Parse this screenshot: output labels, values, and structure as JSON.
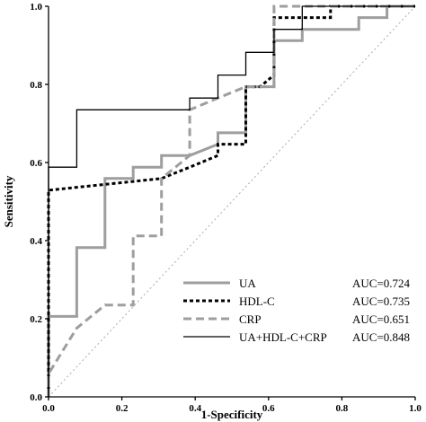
{
  "chart_data": {
    "type": "line",
    "title": "",
    "xlabel": "1-Specificity",
    "ylabel": "Sensitivity",
    "xlim": [
      0,
      1
    ],
    "ylim": [
      0,
      1
    ],
    "xticks": [
      "0.0",
      "0.2",
      "0.4",
      "0.6",
      "0.8",
      "1.0"
    ],
    "yticks": [
      "0.0",
      "0.2",
      "0.4",
      "0.6",
      "0.8",
      "1.0"
    ],
    "grid": false,
    "legend_position": "bottom-right",
    "reference_line": true,
    "series": [
      {
        "name": "UA",
        "auc": "AUC=0.724",
        "color": "#9e9e9e",
        "style": "solid-thick",
        "points": [
          [
            0,
            0
          ],
          [
            0,
            0.206
          ],
          [
            0.077,
            0.206
          ],
          [
            0.077,
            0.382
          ],
          [
            0.154,
            0.382
          ],
          [
            0.154,
            0.559
          ],
          [
            0.231,
            0.559
          ],
          [
            0.231,
            0.588
          ],
          [
            0.308,
            0.588
          ],
          [
            0.308,
            0.618
          ],
          [
            0.385,
            0.618
          ],
          [
            0.462,
            0.647
          ],
          [
            0.462,
            0.676
          ],
          [
            0.538,
            0.676
          ],
          [
            0.538,
            0.794
          ],
          [
            0.615,
            0.794
          ],
          [
            0.615,
            0.882
          ],
          [
            0.615,
            0.912
          ],
          [
            0.692,
            0.912
          ],
          [
            0.692,
            0.941
          ],
          [
            0.846,
            0.941
          ],
          [
            0.846,
            0.971
          ],
          [
            0.923,
            0.971
          ],
          [
            0.923,
            1.0
          ],
          [
            1.0,
            1.0
          ]
        ]
      },
      {
        "name": "HDL-C",
        "auc": "AUC=0.735",
        "color": "#000000",
        "style": "dotted-thick",
        "points": [
          [
            0,
            0
          ],
          [
            0,
            0.529
          ],
          [
            0.308,
            0.559
          ],
          [
            0.385,
            0.588
          ],
          [
            0.462,
            0.618
          ],
          [
            0.462,
            0.647
          ],
          [
            0.538,
            0.647
          ],
          [
            0.538,
            0.794
          ],
          [
            0.577,
            0.794
          ],
          [
            0.615,
            0.824
          ],
          [
            0.615,
            0.971
          ],
          [
            0.769,
            0.971
          ],
          [
            0.769,
            1.0
          ],
          [
            1.0,
            1.0
          ]
        ]
      },
      {
        "name": "CRP",
        "auc": "AUC=0.651",
        "color": "#9e9e9e",
        "style": "dashed-thick",
        "points": [
          [
            0,
            0
          ],
          [
            0,
            0.059
          ],
          [
            0.077,
            0.176
          ],
          [
            0.154,
            0.235
          ],
          [
            0.231,
            0.235
          ],
          [
            0.231,
            0.412
          ],
          [
            0.308,
            0.412
          ],
          [
            0.308,
            0.559
          ],
          [
            0.385,
            0.618
          ],
          [
            0.385,
            0.735
          ],
          [
            0.462,
            0.765
          ],
          [
            0.538,
            0.794
          ],
          [
            0.615,
            0.794
          ],
          [
            0.615,
            1.0
          ],
          [
            1.0,
            1.0
          ]
        ]
      },
      {
        "name": "UA+HDL-C+CRP",
        "auc": "AUC=0.848",
        "color": "#000000",
        "style": "solid-thin",
        "points": [
          [
            0,
            0
          ],
          [
            0,
            0.588
          ],
          [
            0.077,
            0.588
          ],
          [
            0.077,
            0.735
          ],
          [
            0.385,
            0.735
          ],
          [
            0.385,
            0.765
          ],
          [
            0.462,
            0.765
          ],
          [
            0.462,
            0.824
          ],
          [
            0.538,
            0.824
          ],
          [
            0.538,
            0.882
          ],
          [
            0.615,
            0.882
          ],
          [
            0.615,
            0.941
          ],
          [
            0.692,
            0.941
          ],
          [
            0.692,
            1.0
          ],
          [
            1.0,
            1.0
          ]
        ]
      }
    ]
  }
}
